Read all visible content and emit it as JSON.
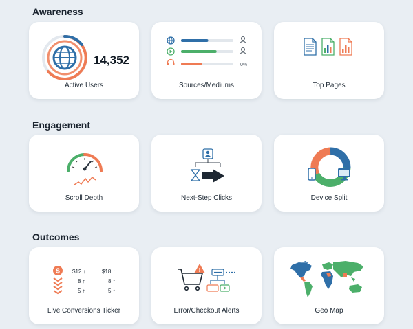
{
  "sections": {
    "awareness": "Awareness",
    "engagement": "Engagement",
    "outcomes": "Outcomes"
  },
  "cards": {
    "active_users": {
      "label": "Active Users",
      "value": "14,352"
    },
    "sources": {
      "label": "Sources/Mediums",
      "rows": [
        {
          "icon": "globe-icon",
          "fill": 0.52,
          "color": "#2f6fa8",
          "end": "user-icon"
        },
        {
          "icon": "play-icon",
          "fill": 0.68,
          "color": "#4caf6a",
          "end": "user-icon"
        },
        {
          "icon": "headphones-icon",
          "fill": 0.4,
          "color": "#ef7b54",
          "end_text": "0%"
        }
      ]
    },
    "top_pages": {
      "label": "Top Pages"
    },
    "scroll_depth": {
      "label": "Scroll Depth"
    },
    "next_step": {
      "label": "Next-Step Clicks"
    },
    "device_split": {
      "label": "Device Split"
    },
    "live_conversions": {
      "label": "Live Conversions Ticker",
      "col1": [
        "$12 ↑",
        "8 ↑",
        "5 ↑"
      ],
      "col2": [
        "$18 ↑",
        "8 ↑",
        "5 ↑"
      ]
    },
    "error_alerts": {
      "label": "Error/Checkout Alerts"
    },
    "geo_map": {
      "label": "Geo Map"
    }
  },
  "colors": {
    "blue": "#2f6fa8",
    "green": "#4caf6a",
    "orange": "#ef7b54",
    "dark": "#1e2833"
  }
}
